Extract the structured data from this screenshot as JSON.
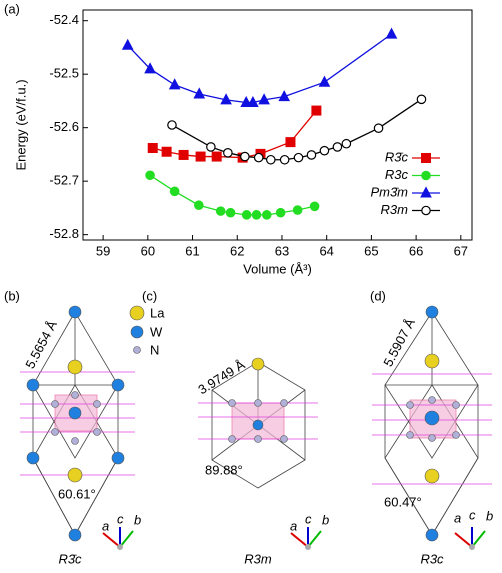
{
  "chart_data": {
    "type": "line",
    "panel_label": "(a)",
    "x_label": "Volume (Å³)",
    "y_label": "Energy (eV/f.u.)",
    "xlim": [
      58.55,
      67.25
    ],
    "xticks": [
      59,
      60,
      61,
      62,
      63,
      64,
      65,
      66,
      67
    ],
    "ylim": [
      -52.81,
      -52.38
    ],
    "yticks": [
      -52.4,
      -52.5,
      -52.6,
      -52.7,
      -52.8
    ],
    "legend": "lower right",
    "series": [
      {
        "name": "R3̄c",
        "color": "#e00000",
        "marker": "square",
        "filled": true,
        "x": [
          60.11,
          60.42,
          60.8,
          61.18,
          61.54,
          62.12,
          62.52,
          63.19,
          63.77
        ],
        "values": [
          -52.638,
          -52.645,
          -52.651,
          -52.654,
          -52.654,
          -52.656,
          -52.649,
          -52.627,
          -52.568
        ]
      },
      {
        "name": "R3c",
        "color": "#22dd22",
        "marker": "circle",
        "filled": true,
        "x": [
          60.05,
          60.6,
          61.14,
          61.63,
          61.85,
          62.21,
          62.43,
          62.66,
          62.97,
          63.35,
          63.73
        ],
        "values": [
          -52.689,
          -52.719,
          -52.745,
          -52.756,
          -52.759,
          -52.763,
          -52.763,
          -52.763,
          -52.759,
          -52.754,
          -52.747
        ]
      },
      {
        "name": "Pm3̄m",
        "color": "#1010e0",
        "marker": "triangle",
        "filled": true,
        "x": [
          59.55,
          60.05,
          60.6,
          61.15,
          61.75,
          62.2,
          62.35,
          62.6,
          63.05,
          63.95,
          65.45
        ],
        "values": [
          -52.446,
          -52.49,
          -52.52,
          -52.537,
          -52.548,
          -52.553,
          -52.553,
          -52.548,
          -52.542,
          -52.515,
          -52.425
        ]
      },
      {
        "name": "R3m",
        "color": "#000000",
        "marker": "circle",
        "filled": false,
        "x": [
          60.54,
          61.41,
          61.79,
          62.17,
          62.48,
          62.75,
          63.06,
          63.37,
          63.66,
          63.95,
          64.24,
          64.44,
          65.16,
          66.12
        ],
        "values": [
          -52.595,
          -52.636,
          -52.647,
          -52.654,
          -52.656,
          -52.66,
          -52.66,
          -52.656,
          -52.651,
          -52.643,
          -52.636,
          -52.63,
          -52.601,
          -52.547
        ]
      }
    ]
  },
  "atoms": [
    "La",
    "W",
    "N"
  ],
  "panels": [
    {
      "label": "(b)",
      "lattice": "5.5654 Å",
      "angle": "60.61°",
      "name": "R3̄c"
    },
    {
      "label": "(c)",
      "lattice": "3.9749 Å",
      "angle": "89.88°",
      "name": "R3m"
    },
    {
      "label": "(d)",
      "lattice": "5.5907 Å",
      "angle": "60.47°",
      "name": "R3c"
    }
  ],
  "axes": [
    "a",
    "c",
    "b"
  ]
}
